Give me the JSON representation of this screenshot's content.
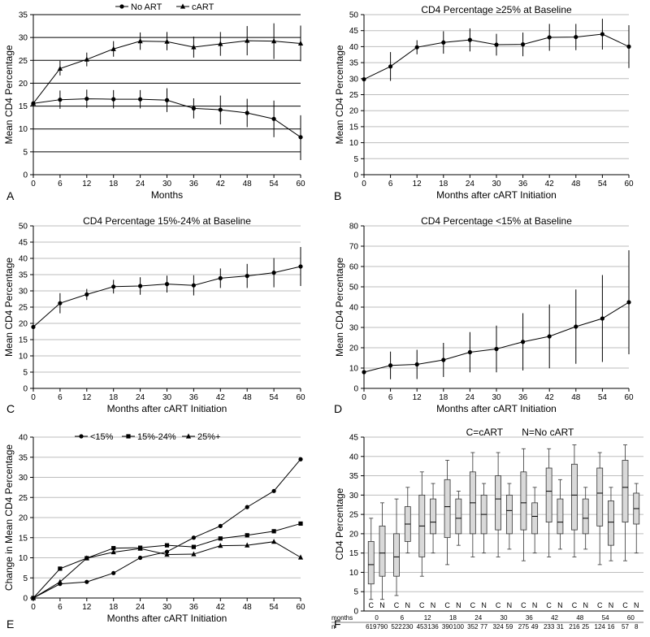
{
  "chart_data": [
    {
      "panel": "A",
      "type": "line",
      "title": "",
      "xlabel": "Months",
      "ylabel": "Mean CD4 Percentage",
      "xlim": [
        0,
        60
      ],
      "ylim": [
        0,
        35
      ],
      "xticks": [
        0,
        6,
        12,
        18,
        24,
        30,
        36,
        42,
        48,
        54,
        60
      ],
      "yticks": [
        0,
        5,
        10,
        15,
        20,
        25,
        30,
        35
      ],
      "grid": "horizontal",
      "legend": "top-center",
      "series": [
        {
          "name": "No ART",
          "marker": "circle",
          "x": [
            0,
            6,
            12,
            18,
            24,
            30,
            36,
            42,
            48,
            54,
            60
          ],
          "y": [
            15.6,
            16.4,
            16.6,
            16.5,
            16.5,
            16.3,
            14.5,
            14.2,
            13.5,
            12.2,
            8.2
          ],
          "low": [
            15.2,
            14.4,
            14.6,
            14.5,
            14.5,
            13.7,
            12.3,
            11.0,
            10.4,
            8.2,
            3.2
          ],
          "high": [
            16.0,
            18.4,
            18.6,
            18.5,
            18.5,
            18.9,
            16.7,
            17.3,
            16.6,
            16.2,
            13.0
          ]
        },
        {
          "name": "cART",
          "marker": "triangle",
          "x": [
            0,
            6,
            12,
            18,
            24,
            30,
            36,
            42,
            48,
            54,
            60
          ],
          "y": [
            15.6,
            23.2,
            25.2,
            27.5,
            29.2,
            29.1,
            27.9,
            28.6,
            29.3,
            29.2,
            28.7
          ],
          "low": [
            15.2,
            21.7,
            23.7,
            25.8,
            27.3,
            27.2,
            25.6,
            26.0,
            26.1,
            25.3,
            24.8
          ],
          "high": [
            16.0,
            24.9,
            26.7,
            29.2,
            31.1,
            31.2,
            30.2,
            31.2,
            32.5,
            33.1,
            32.6
          ]
        }
      ]
    },
    {
      "panel": "B",
      "type": "line",
      "title": "CD4 Percentage ≥25% at Baseline",
      "xlabel": "Months after cART Initiation",
      "ylabel": "Mean CD4 Percentage",
      "xlim": [
        0,
        60
      ],
      "ylim": [
        0,
        50
      ],
      "xticks": [
        0,
        6,
        12,
        18,
        24,
        30,
        36,
        42,
        48,
        54,
        60
      ],
      "yticks": [
        0,
        5,
        10,
        15,
        20,
        25,
        30,
        35,
        40,
        45,
        50
      ],
      "grid": "horizontal",
      "series": [
        {
          "marker": "circle",
          "x": [
            0,
            6,
            12,
            18,
            24,
            30,
            36,
            42,
            48,
            54,
            60
          ],
          "y": [
            29.8,
            33.8,
            39.8,
            41.3,
            42.1,
            40.6,
            40.7,
            42.9,
            43.0,
            43.9,
            40.0
          ],
          "low": [
            29.8,
            29.3,
            37.6,
            37.8,
            38.5,
            37.2,
            37.0,
            38.7,
            38.9,
            39.1,
            33.3
          ],
          "high": [
            29.8,
            38.3,
            42.0,
            44.8,
            45.7,
            44.0,
            44.4,
            47.1,
            47.1,
            48.7,
            46.7
          ]
        }
      ]
    },
    {
      "panel": "C",
      "type": "line",
      "title": "CD4 Percentage 15%-24% at Baseline",
      "xlabel": "Months after cART Initiation",
      "ylabel": "Mean CD4 Percentage",
      "xlim": [
        0,
        60
      ],
      "ylim": [
        0,
        50
      ],
      "xticks": [
        0,
        6,
        12,
        18,
        24,
        30,
        36,
        42,
        48,
        54,
        60
      ],
      "yticks": [
        0,
        5,
        10,
        15,
        20,
        25,
        30,
        35,
        40,
        45,
        50
      ],
      "grid": "horizontal",
      "series": [
        {
          "marker": "circle",
          "x": [
            0,
            6,
            12,
            18,
            24,
            30,
            36,
            42,
            48,
            54,
            60
          ],
          "y": [
            18.9,
            26.2,
            28.9,
            31.3,
            31.5,
            32.1,
            31.7,
            33.9,
            34.6,
            35.6,
            37.5
          ],
          "low": [
            18.9,
            23.1,
            27.2,
            29.2,
            28.8,
            29.5,
            28.6,
            30.9,
            30.9,
            31.1,
            31.5
          ],
          "high": [
            18.9,
            29.3,
            30.6,
            33.4,
            34.2,
            34.7,
            34.8,
            36.9,
            38.3,
            40.1,
            43.5
          ]
        }
      ]
    },
    {
      "panel": "D",
      "type": "line",
      "title": "CD4 Percentage <15% at Baseline",
      "xlabel": "Months after cART Initiation",
      "ylabel": "Mean CD4 Percentage",
      "xlim": [
        0,
        60
      ],
      "ylim": [
        0,
        80
      ],
      "xticks": [
        0,
        6,
        12,
        18,
        24,
        30,
        36,
        42,
        48,
        54,
        60
      ],
      "yticks": [
        0,
        10,
        20,
        30,
        40,
        50,
        60,
        70,
        80
      ],
      "grid": "horizontal",
      "series": [
        {
          "marker": "circle",
          "x": [
            0,
            6,
            12,
            18,
            24,
            30,
            36,
            42,
            48,
            54,
            60
          ],
          "y": [
            8.0,
            11.3,
            11.8,
            14.0,
            17.8,
            19.4,
            22.9,
            25.6,
            30.4,
            34.4,
            42.4
          ],
          "low": [
            8.0,
            4.5,
            4.6,
            5.6,
            7.9,
            7.9,
            8.8,
            9.9,
            12.1,
            13.0,
            16.8
          ],
          "high": [
            8.0,
            18.1,
            19.0,
            22.4,
            27.7,
            30.9,
            37.0,
            41.3,
            48.7,
            55.8,
            68.0
          ]
        }
      ]
    },
    {
      "panel": "E",
      "type": "line",
      "title": "",
      "xlabel": "Months after cART Initiation",
      "ylabel": "Change in Mean CD4 Percentage",
      "xlim": [
        0,
        60
      ],
      "ylim": [
        0,
        40
      ],
      "xticks": [
        0,
        6,
        12,
        18,
        24,
        30,
        36,
        42,
        48,
        54,
        60
      ],
      "yticks": [
        0,
        5,
        10,
        15,
        20,
        25,
        30,
        35,
        40
      ],
      "grid": "horizontal",
      "legend": "top-center",
      "series": [
        {
          "name": "<15%",
          "marker": "circle",
          "x": [
            0,
            6,
            12,
            18,
            24,
            30,
            36,
            42,
            48,
            54,
            60
          ],
          "y": [
            0,
            3.5,
            4.0,
            6.2,
            10.0,
            11.5,
            15.0,
            17.9,
            22.6,
            26.6,
            34.5
          ]
        },
        {
          "name": "15%-24%",
          "marker": "square",
          "x": [
            0,
            6,
            12,
            18,
            24,
            30,
            36,
            42,
            48,
            54,
            60
          ],
          "y": [
            0,
            7.3,
            9.9,
            12.4,
            12.5,
            13.1,
            12.7,
            14.8,
            15.6,
            16.6,
            18.5
          ]
        },
        {
          "name": "25%+",
          "marker": "triangle",
          "x": [
            0,
            6,
            12,
            18,
            24,
            30,
            36,
            42,
            48,
            54,
            60
          ],
          "y": [
            0,
            4.0,
            9.9,
            11.4,
            12.3,
            10.8,
            10.9,
            13.0,
            13.1,
            14.0,
            10.1
          ]
        }
      ]
    },
    {
      "panel": "F",
      "type": "box",
      "title": "C=cART       N=No cART",
      "xlabel": "",
      "ylabel": "CD4 Percentage",
      "ylim": [
        0,
        45
      ],
      "yticks": [
        0,
        5,
        10,
        15,
        20,
        25,
        30,
        35,
        40,
        45
      ],
      "grid": "horizontal",
      "group_label": "months",
      "n_label": "n",
      "months": [
        "0",
        "6",
        "12",
        "18",
        "24",
        "30",
        "36",
        "42",
        "48",
        "54",
        "60"
      ],
      "boxes": [
        {
          "month": "0",
          "group": "C",
          "n": "619",
          "whisker_low": 3,
          "q1": 7,
          "median": 12,
          "q3": 18,
          "whisker_high": 24
        },
        {
          "month": "0",
          "group": "N",
          "n": "790",
          "whisker_low": 3,
          "q1": 9,
          "median": 15,
          "q3": 22,
          "whisker_high": 28
        },
        {
          "month": "6",
          "group": "C",
          "n": "522",
          "whisker_low": 4,
          "q1": 9,
          "median": 14,
          "q3": 20,
          "whisker_high": 29
        },
        {
          "month": "6",
          "group": "N",
          "n": "230",
          "whisker_low": 15,
          "q1": 18,
          "median": 22.5,
          "q3": 27,
          "whisker_high": 32
        },
        {
          "month": "12",
          "group": "C",
          "n": "453",
          "whisker_low": 9,
          "q1": 14,
          "median": 22,
          "q3": 30,
          "whisker_high": 36
        },
        {
          "month": "12",
          "group": "N",
          "n": "136",
          "whisker_low": 15,
          "q1": 20,
          "median": 23,
          "q3": 29,
          "whisker_high": 33
        },
        {
          "month": "18",
          "group": "C",
          "n": "390",
          "whisker_low": 12,
          "q1": 19,
          "median": 27,
          "q3": 34,
          "whisker_high": 39
        },
        {
          "month": "18",
          "group": "N",
          "n": "100",
          "whisker_low": 17,
          "q1": 20,
          "median": 24,
          "q3": 29,
          "whisker_high": 31
        },
        {
          "month": "24",
          "group": "C",
          "n": "352",
          "whisker_low": 14,
          "q1": 20,
          "median": 28,
          "q3": 36,
          "whisker_high": 41
        },
        {
          "month": "24",
          "group": "N",
          "n": "77",
          "whisker_low": 15,
          "q1": 20,
          "median": 25,
          "q3": 30,
          "whisker_high": 33
        },
        {
          "month": "30",
          "group": "C",
          "n": "324",
          "whisker_low": 14,
          "q1": 21,
          "median": 29,
          "q3": 35,
          "whisker_high": 41
        },
        {
          "month": "30",
          "group": "N",
          "n": "59",
          "whisker_low": 16,
          "q1": 20,
          "median": 26,
          "q3": 30,
          "whisker_high": 33
        },
        {
          "month": "36",
          "group": "C",
          "n": "275",
          "whisker_low": 13,
          "q1": 21,
          "median": 28,
          "q3": 36,
          "whisker_high": 42
        },
        {
          "month": "36",
          "group": "N",
          "n": "49",
          "whisker_low": 15,
          "q1": 20,
          "median": 24.5,
          "q3": 28,
          "whisker_high": 32
        },
        {
          "month": "42",
          "group": "C",
          "n": "233",
          "whisker_low": 14,
          "q1": 23,
          "median": 31,
          "q3": 37,
          "whisker_high": 42
        },
        {
          "month": "42",
          "group": "N",
          "n": "31",
          "whisker_low": 16,
          "q1": 20,
          "median": 23,
          "q3": 29,
          "whisker_high": 34
        },
        {
          "month": "48",
          "group": "C",
          "n": "216",
          "whisker_low": 14,
          "q1": 21,
          "median": 30,
          "q3": 38,
          "whisker_high": 43
        },
        {
          "month": "48",
          "group": "N",
          "n": "25",
          "whisker_low": 16,
          "q1": 20,
          "median": 24,
          "q3": 29,
          "whisker_high": 32
        },
        {
          "month": "54",
          "group": "C",
          "n": "124",
          "whisker_low": 12,
          "q1": 22,
          "median": 30.5,
          "q3": 37,
          "whisker_high": 41
        },
        {
          "month": "54",
          "group": "N",
          "n": "16",
          "whisker_low": 13,
          "q1": 17,
          "median": 23,
          "q3": 28.5,
          "whisker_high": 32
        },
        {
          "month": "60",
          "group": "C",
          "n": "57",
          "whisker_low": 13,
          "q1": 23,
          "median": 32,
          "q3": 39,
          "whisker_high": 43
        },
        {
          "month": "60",
          "group": "N",
          "n": "8",
          "whisker_low": 15,
          "q1": 22.5,
          "median": 26.5,
          "q3": 30.5,
          "whisker_high": 33
        }
      ]
    }
  ]
}
